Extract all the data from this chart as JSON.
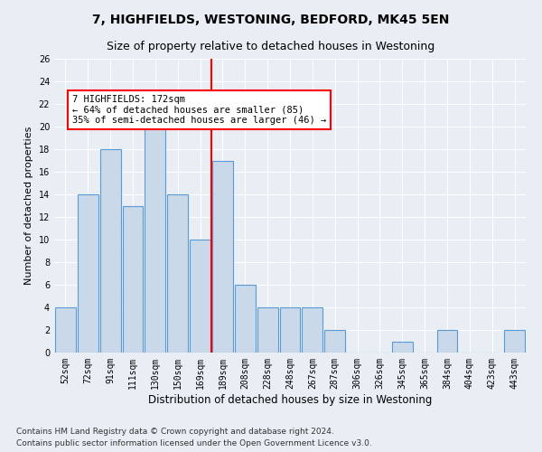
{
  "title1": "7, HIGHFIELDS, WESTONING, BEDFORD, MK45 5EN",
  "title2": "Size of property relative to detached houses in Westoning",
  "xlabel": "Distribution of detached houses by size in Westoning",
  "ylabel": "Number of detached properties",
  "categories": [
    "52sqm",
    "72sqm",
    "91sqm",
    "111sqm",
    "130sqm",
    "150sqm",
    "169sqm",
    "189sqm",
    "208sqm",
    "228sqm",
    "248sqm",
    "267sqm",
    "287sqm",
    "306sqm",
    "326sqm",
    "345sqm",
    "365sqm",
    "384sqm",
    "404sqm",
    "423sqm",
    "443sqm"
  ],
  "values": [
    4,
    14,
    18,
    13,
    21,
    14,
    10,
    17,
    6,
    4,
    4,
    4,
    2,
    0,
    0,
    1,
    0,
    2,
    0,
    0,
    2
  ],
  "bar_color": "#c9d9ea",
  "bar_edge_color": "#5b9bd5",
  "red_line_index": 6,
  "annotation_text": "7 HIGHFIELDS: 172sqm\n← 64% of detached houses are smaller (85)\n35% of semi-detached houses are larger (46) →",
  "annotation_box_color": "white",
  "annotation_box_edge": "red",
  "ylim": [
    0,
    26
  ],
  "yticks": [
    0,
    2,
    4,
    6,
    8,
    10,
    12,
    14,
    16,
    18,
    20,
    22,
    24,
    26
  ],
  "footer1": "Contains HM Land Registry data © Crown copyright and database right 2024.",
  "footer2": "Contains public sector information licensed under the Open Government Licence v3.0.",
  "background_color": "#e8eef4",
  "grid_color": "#ffffff",
  "title1_fontsize": 10,
  "title2_fontsize": 9,
  "ylabel_fontsize": 8,
  "xlabel_fontsize": 8.5,
  "tick_fontsize": 7,
  "footer_fontsize": 6.5,
  "ann_fontsize": 7.5
}
